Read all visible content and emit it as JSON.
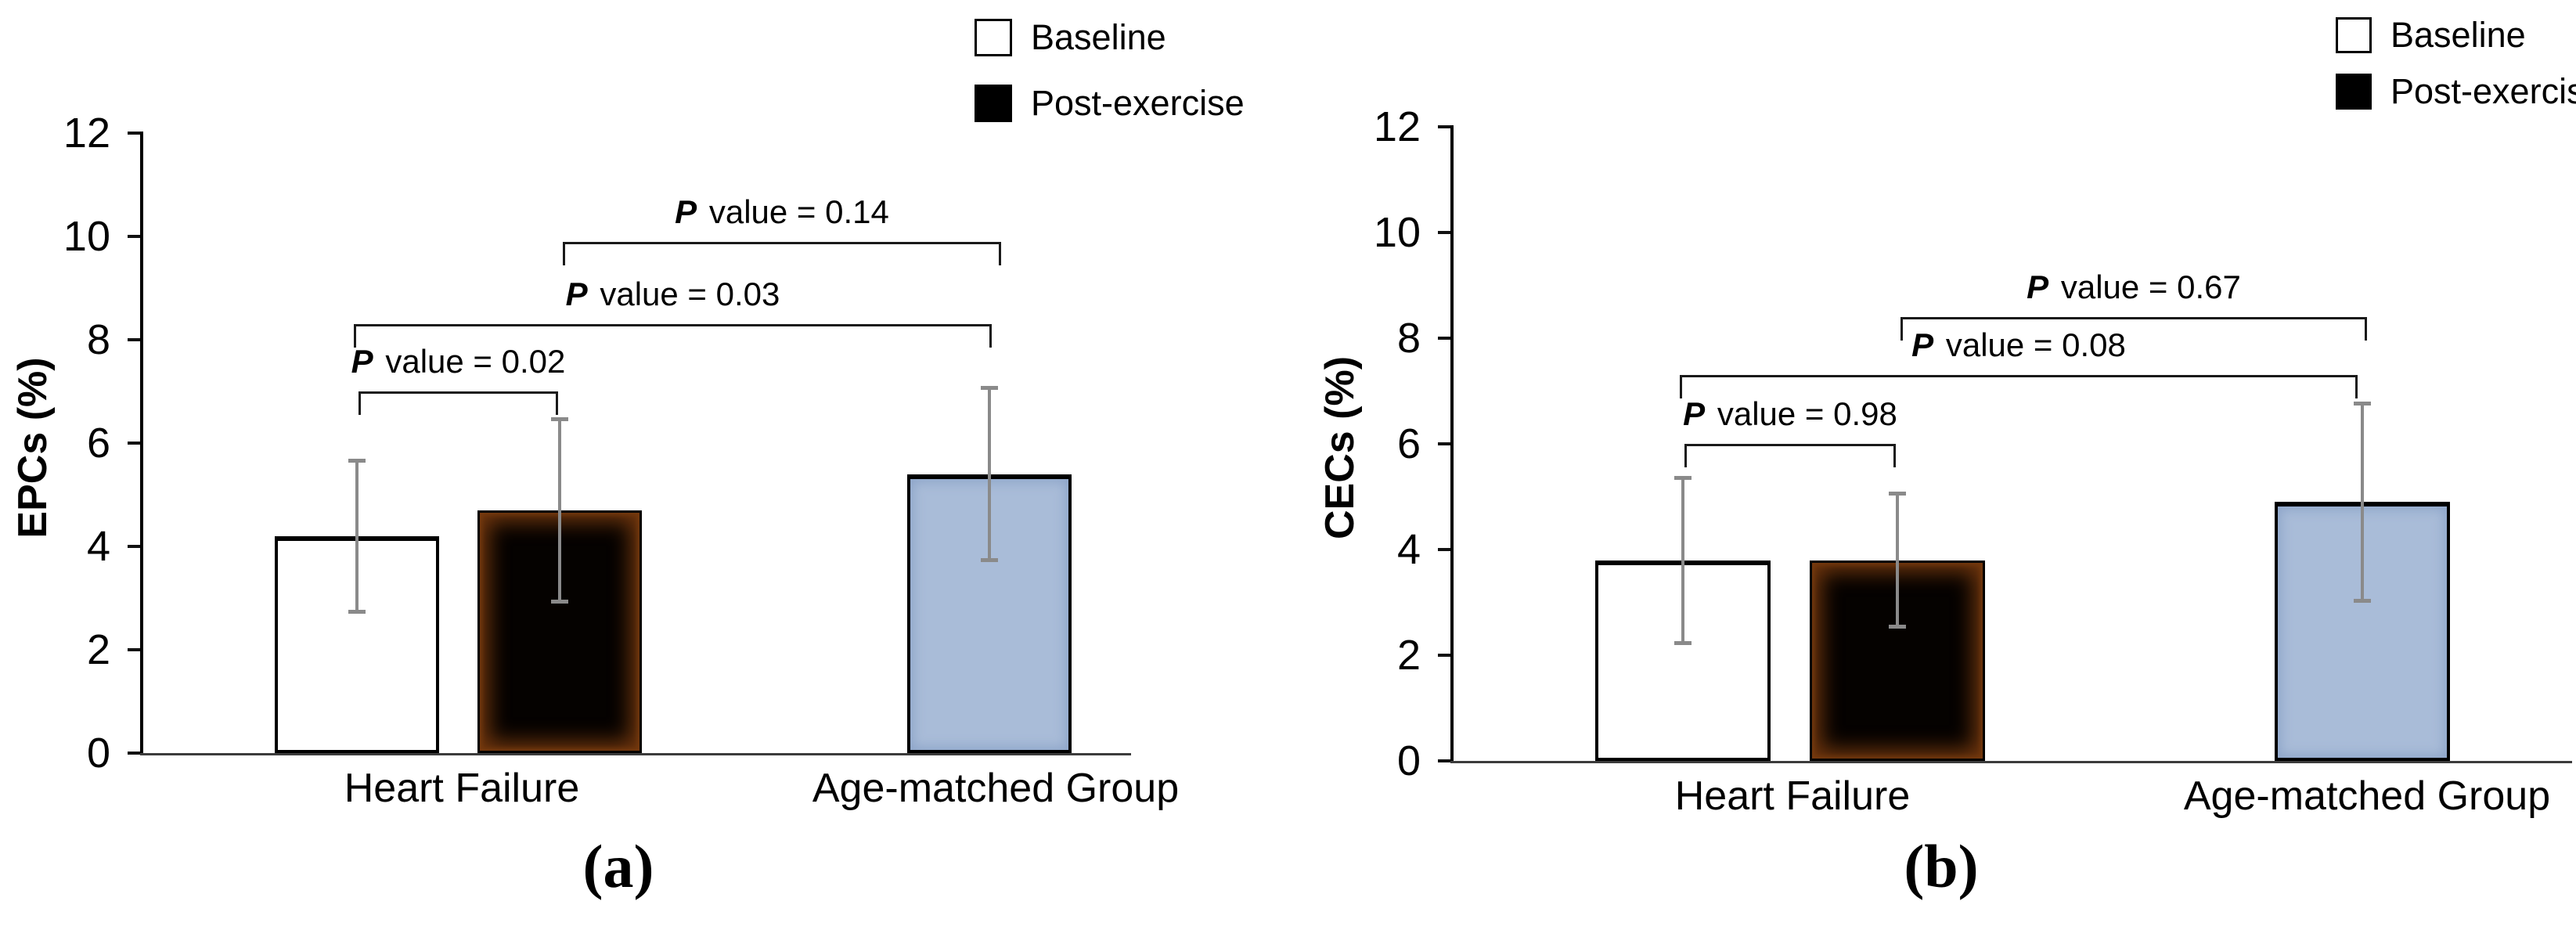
{
  "figure": {
    "type": "two-panel bar figure",
    "panel_captions": [
      "(a)",
      "(b)"
    ]
  },
  "chart_data": [
    {
      "type": "bar",
      "panel": "a",
      "caption": "(a)",
      "title": "",
      "xlabel": "",
      "ylabel": "EPCs (%)",
      "ylim": [
        0,
        12
      ],
      "yticks": [
        0,
        2,
        4,
        6,
        8,
        10,
        12
      ],
      "grid": false,
      "legend_position": "top-right",
      "legend": [
        {
          "label": "Baseline",
          "fill": "#ffffff"
        },
        {
          "label": "Post-exercise",
          "fill": "#000000"
        }
      ],
      "categories": [
        "Heart Failure",
        "Age-matched Group"
      ],
      "bars": [
        {
          "category": "Heart Failure",
          "series": "Baseline",
          "value": 4.2,
          "err_low": 2.7,
          "err_high": 5.7,
          "fill": "#ffffff"
        },
        {
          "category": "Heart Failure",
          "series": "Post-exercise",
          "value": 4.7,
          "err_low": 2.9,
          "err_high": 6.5,
          "fill": "#000000"
        },
        {
          "category": "Age-matched Group",
          "series": "Baseline",
          "value": 5.4,
          "err_low": 3.7,
          "err_high": 7.1,
          "fill": "#a9bcd8"
        }
      ],
      "brackets": [
        {
          "label": "P value = 0.02",
          "from_bar": 0,
          "to_bar": 1,
          "y": 7.0
        },
        {
          "label": "P value = 0.03",
          "from_bar": 0,
          "to_bar": 2,
          "y": 8.3
        },
        {
          "label": "P value = 0.14",
          "from_bar": 1,
          "to_bar": 2,
          "y": 9.9
        }
      ]
    },
    {
      "type": "bar",
      "panel": "b",
      "caption": "(b)",
      "title": "",
      "xlabel": "",
      "ylabel": "CECs (%)",
      "ylim": [
        0,
        12
      ],
      "yticks": [
        0,
        2,
        4,
        6,
        8,
        10,
        12
      ],
      "grid": false,
      "legend_position": "top-right",
      "legend": [
        {
          "label": "Baseline",
          "fill": "#ffffff"
        },
        {
          "label": "Post-exercise",
          "fill": "#000000"
        }
      ],
      "categories": [
        "Heart Failure",
        "Age-matched Group"
      ],
      "bars": [
        {
          "category": "Heart Failure",
          "series": "Baseline",
          "value": 3.8,
          "err_low": 2.2,
          "err_high": 5.4,
          "fill": "#ffffff"
        },
        {
          "category": "Heart Failure",
          "series": "Post-exercise",
          "value": 3.8,
          "err_low": 2.5,
          "err_high": 5.1,
          "fill": "#000000"
        },
        {
          "category": "Age-matched Group",
          "series": "Baseline",
          "value": 4.9,
          "err_low": 3.0,
          "err_high": 6.8,
          "fill": "#a9bcd8"
        }
      ],
      "brackets": [
        {
          "label": "P value = 0.98",
          "from_bar": 0,
          "to_bar": 1,
          "y": 6.0
        },
        {
          "label": "P value = 0.08",
          "from_bar": 0,
          "to_bar": 2,
          "y": 7.3
        },
        {
          "label": "P value = 0.67",
          "from_bar": 1,
          "to_bar": 2,
          "y": 8.4
        }
      ]
    }
  ],
  "colors": {
    "error_bar": "#8a8a8a",
    "axis": "#000000",
    "baseline_axis": "#3c3c3c",
    "age_matched_fill": "#a9bcd8",
    "bar_border": "#000000"
  }
}
